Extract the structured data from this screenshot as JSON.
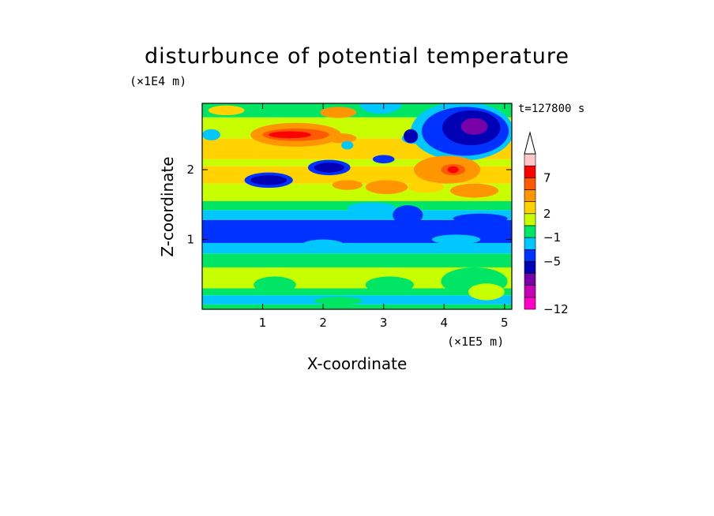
{
  "chart_data": {
    "type": "heatmap",
    "title": "disturbunce of potential temperature",
    "time_label": "t=127800 s",
    "xlabel": "X-coordinate",
    "ylabel": "Z-coordinate",
    "x_unit": "(×1E5 m)",
    "z_unit": "(×1E4 m)",
    "xlim": [
      0,
      5.12
    ],
    "ylim": [
      0,
      2.95
    ],
    "x_ticks": [
      "1",
      "2",
      "3",
      "4",
      "5"
    ],
    "x_tick_values": [
      1,
      2,
      3,
      4,
      5
    ],
    "y_ticks": [
      "1",
      "2"
    ],
    "y_tick_values": [
      1,
      2
    ],
    "colorbar": {
      "colors": [
        "#ff00c8",
        "#c800b4",
        "#7800a8",
        "#0000b4",
        "#0032ff",
        "#00c8ff",
        "#00e664",
        "#c8ff00",
        "#ffd200",
        "#ff9600",
        "#ff5a00",
        "#ff0000",
        "#ffc8c8"
      ],
      "tick_labels": [
        "−12",
        "−5",
        "−1",
        "2",
        "7"
      ],
      "tick_boundary_index": [
        0,
        4,
        6,
        8,
        11
      ],
      "extend": "max"
    },
    "bands": [
      {
        "z": [
          0.0,
          0.07
        ],
        "color": "#00e664"
      },
      {
        "z": [
          0.07,
          0.2
        ],
        "color": "#00c8ff"
      },
      {
        "z": [
          0.2,
          0.3
        ],
        "color": "#00e664"
      },
      {
        "z": [
          0.3,
          0.6
        ],
        "color": "#c8ff00"
      },
      {
        "z": [
          0.6,
          0.8
        ],
        "color": "#00e664"
      },
      {
        "z": [
          0.8,
          0.95
        ],
        "color": "#00c8ff"
      },
      {
        "z": [
          0.95,
          1.28
        ],
        "color": "#0032ff"
      },
      {
        "z": [
          1.28,
          1.42
        ],
        "color": "#00c8ff"
      },
      {
        "z": [
          1.42,
          1.55
        ],
        "color": "#00e664"
      },
      {
        "z": [
          1.55,
          1.8
        ],
        "color": "#c8ff00"
      },
      {
        "z": [
          1.8,
          2.05
        ],
        "color": "#ffd200"
      },
      {
        "z": [
          2.05,
          2.15
        ],
        "color": "#c8ff00"
      },
      {
        "z": [
          2.15,
          2.45
        ],
        "color": "#ffd200"
      },
      {
        "z": [
          2.45,
          2.75
        ],
        "color": "#c8ff00"
      },
      {
        "z": [
          2.75,
          2.95
        ],
        "color": "#00e664"
      }
    ],
    "blobs": [
      {
        "x": 1.55,
        "z": 2.5,
        "rx": 0.75,
        "rz": 0.17,
        "color": "#ff9600"
      },
      {
        "x": 1.55,
        "z": 2.5,
        "rx": 0.55,
        "rz": 0.09,
        "color": "#ff5a00"
      },
      {
        "x": 1.45,
        "z": 2.5,
        "rx": 0.35,
        "rz": 0.05,
        "color": "#ff0000"
      },
      {
        "x": 2.3,
        "z": 2.45,
        "rx": 0.25,
        "rz": 0.07,
        "color": "#ff9600"
      },
      {
        "x": 2.25,
        "z": 2.82,
        "rx": 0.3,
        "rz": 0.08,
        "color": "#ff9600"
      },
      {
        "x": 0.4,
        "z": 2.85,
        "rx": 0.3,
        "rz": 0.07,
        "color": "#ffd200"
      },
      {
        "x": 0.15,
        "z": 2.5,
        "rx": 0.15,
        "rz": 0.08,
        "color": "#00c8ff"
      },
      {
        "x": 2.4,
        "z": 2.35,
        "rx": 0.1,
        "rz": 0.06,
        "color": "#00c8ff"
      },
      {
        "x": 2.95,
        "z": 2.95,
        "rx": 0.35,
        "rz": 0.15,
        "color": "#00c8ff"
      },
      {
        "x": 3.5,
        "z": 2.45,
        "rx": 0.2,
        "rz": 0.08,
        "color": "#00c8ff"
      },
      {
        "x": 4.3,
        "z": 2.55,
        "rx": 0.85,
        "rz": 0.42,
        "color": "#00c8ff"
      },
      {
        "x": 4.35,
        "z": 2.55,
        "rx": 0.72,
        "rz": 0.35,
        "color": "#0032ff"
      },
      {
        "x": 4.45,
        "z": 2.6,
        "rx": 0.48,
        "rz": 0.25,
        "color": "#0000b4"
      },
      {
        "x": 4.5,
        "z": 2.62,
        "rx": 0.22,
        "rz": 0.12,
        "color": "#7800a8"
      },
      {
        "x": 3.45,
        "z": 2.48,
        "rx": 0.12,
        "rz": 0.1,
        "color": "#0000b4"
      },
      {
        "x": 3.0,
        "z": 2.15,
        "rx": 0.18,
        "rz": 0.06,
        "color": "#0032ff"
      },
      {
        "x": 2.1,
        "z": 2.03,
        "rx": 0.35,
        "rz": 0.11,
        "color": "#0032ff"
      },
      {
        "x": 2.1,
        "z": 2.03,
        "rx": 0.25,
        "rz": 0.07,
        "color": "#0000b4"
      },
      {
        "x": 1.1,
        "z": 1.85,
        "rx": 0.4,
        "rz": 0.11,
        "color": "#0032ff"
      },
      {
        "x": 1.1,
        "z": 1.85,
        "rx": 0.3,
        "rz": 0.07,
        "color": "#0000b4"
      },
      {
        "x": 4.05,
        "z": 2.0,
        "rx": 0.55,
        "rz": 0.2,
        "color": "#ff9600"
      },
      {
        "x": 4.15,
        "z": 2.0,
        "rx": 0.2,
        "rz": 0.08,
        "color": "#ff5a00"
      },
      {
        "x": 4.15,
        "z": 2.0,
        "rx": 0.09,
        "rz": 0.05,
        "color": "#ff0000"
      },
      {
        "x": 3.05,
        "z": 1.75,
        "rx": 0.35,
        "rz": 0.1,
        "color": "#ff9600"
      },
      {
        "x": 2.4,
        "z": 1.78,
        "rx": 0.25,
        "rz": 0.07,
        "color": "#ff9600"
      },
      {
        "x": 4.5,
        "z": 1.7,
        "rx": 0.4,
        "rz": 0.1,
        "color": "#ff9600"
      },
      {
        "x": 3.7,
        "z": 1.75,
        "rx": 0.3,
        "rz": 0.08,
        "color": "#ffd200"
      },
      {
        "x": 3.4,
        "z": 1.35,
        "rx": 0.25,
        "rz": 0.14,
        "color": "#0032ff"
      },
      {
        "x": 4.6,
        "z": 1.3,
        "rx": 0.45,
        "rz": 0.07,
        "color": "#0032ff"
      },
      {
        "x": 2.8,
        "z": 1.45,
        "rx": 0.4,
        "rz": 0.08,
        "color": "#00c8ff"
      },
      {
        "x": 2.0,
        "z": 0.92,
        "rx": 0.35,
        "rz": 0.08,
        "color": "#00c8ff"
      },
      {
        "x": 4.2,
        "z": 1.0,
        "rx": 0.4,
        "rz": 0.07,
        "color": "#00c8ff"
      },
      {
        "x": 1.2,
        "z": 0.35,
        "rx": 0.35,
        "rz": 0.12,
        "color": "#00e664"
      },
      {
        "x": 3.1,
        "z": 0.35,
        "rx": 0.4,
        "rz": 0.12,
        "color": "#00e664"
      },
      {
        "x": 4.5,
        "z": 0.4,
        "rx": 0.55,
        "rz": 0.2,
        "color": "#00e664"
      },
      {
        "x": 4.7,
        "z": 0.25,
        "rx": 0.3,
        "rz": 0.12,
        "color": "#c8ff00"
      },
      {
        "x": 2.25,
        "z": 0.12,
        "rx": 0.4,
        "rz": 0.06,
        "color": "#00e664"
      }
    ]
  }
}
